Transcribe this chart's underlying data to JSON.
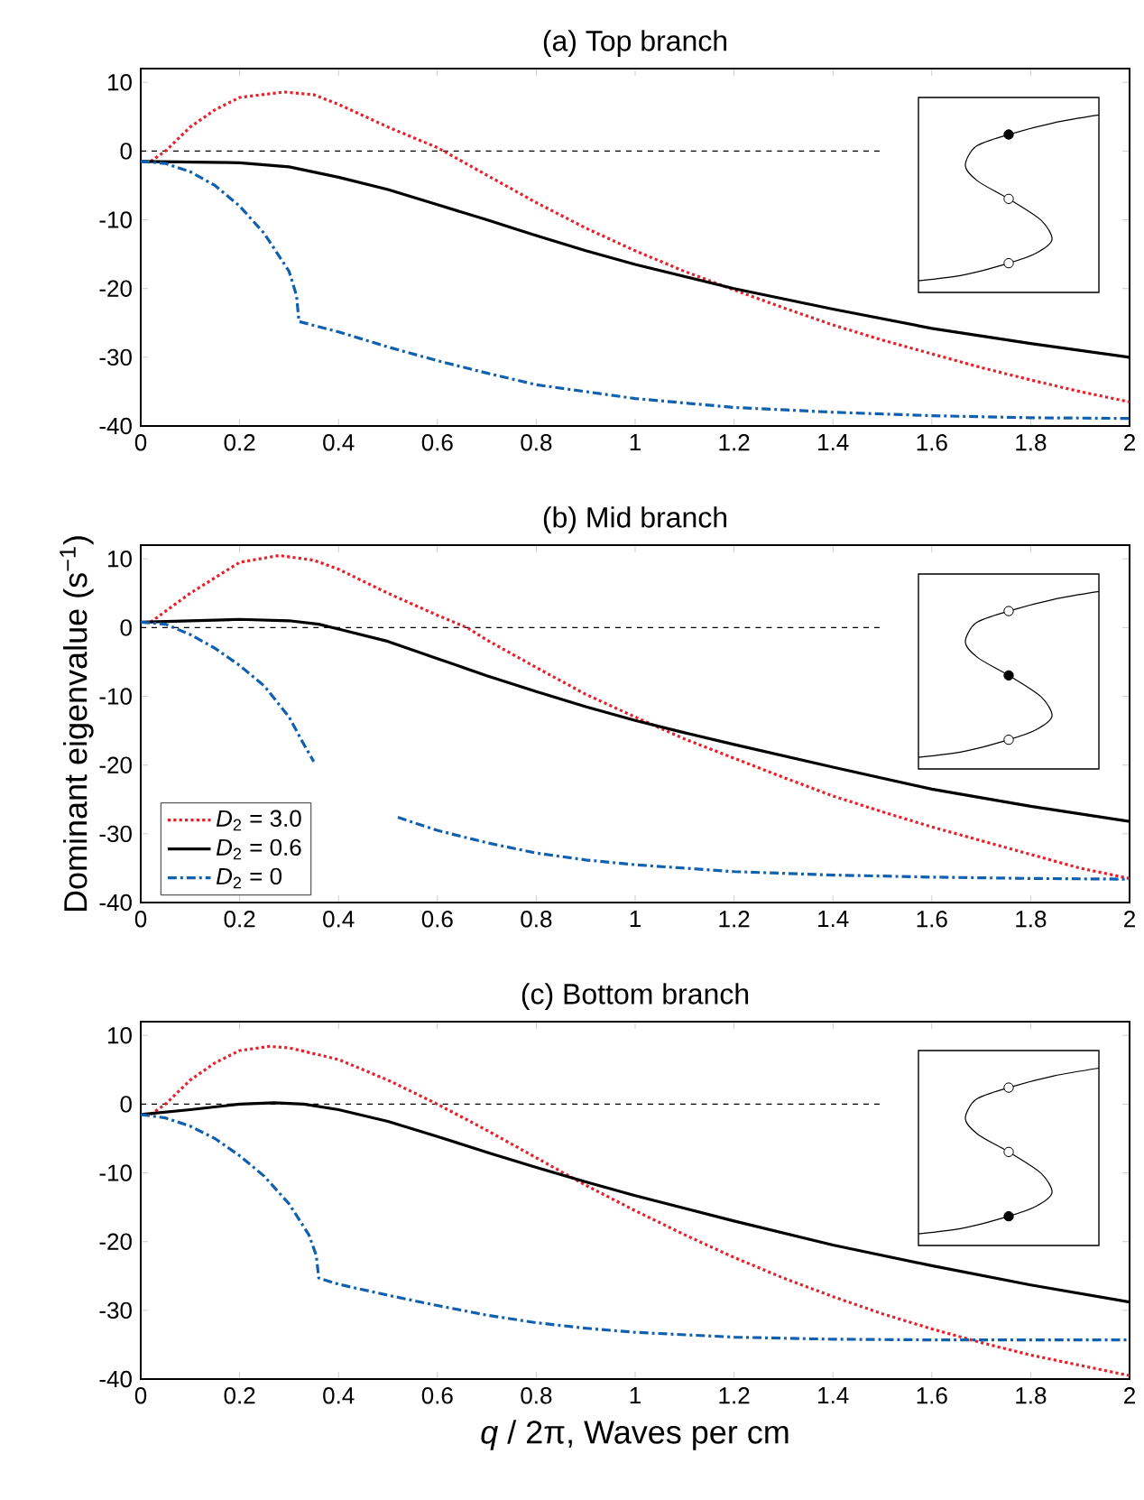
{
  "chart_data": [
    {
      "type": "line",
      "title": "(a) Top branch",
      "xlim": [
        0,
        2
      ],
      "ylim": [
        -40,
        12
      ],
      "xticks": [
        0,
        0.2,
        0.4,
        0.6,
        0.8,
        1,
        1.2,
        1.4,
        1.6,
        1.8,
        2
      ],
      "yticks": [
        -40,
        -30,
        -20,
        -10,
        0,
        10
      ],
      "series": [
        {
          "color": "#000000",
          "line_style": "dashed",
          "x": [
            0,
            1.5
          ],
          "values": [
            0,
            0
          ]
        },
        {
          "color": "#e8202a",
          "line_style": "dotted",
          "x": [
            0.02,
            0.05,
            0.1,
            0.15,
            0.2,
            0.29,
            0.35,
            0.4,
            0.5,
            0.6,
            0.7,
            0.8,
            0.9,
            1.0,
            1.1,
            1.2,
            1.3,
            1.4,
            1.5,
            1.6,
            1.7,
            1.8,
            1.9,
            2.0
          ],
          "values": [
            -1.5,
            0,
            3.5,
            6,
            7.8,
            8.6,
            8.2,
            6.8,
            3.5,
            0.5,
            -3.5,
            -7.5,
            -11.2,
            -14.5,
            -17.5,
            -20.2,
            -22.8,
            -25.3,
            -27.5,
            -29.5,
            -31.5,
            -33.3,
            -35,
            -36.5
          ]
        },
        {
          "color": "#000000",
          "line_style": "solid",
          "x": [
            0,
            0.2,
            0.3,
            0.4,
            0.5,
            0.6,
            0.7,
            0.8,
            0.9,
            1.0,
            1.2,
            1.4,
            1.6,
            1.8,
            2.0
          ],
          "values": [
            -1.5,
            -1.7,
            -2.3,
            -3.8,
            -5.6,
            -7.8,
            -10,
            -12.3,
            -14.5,
            -16.5,
            -20,
            -23,
            -25.8,
            -28,
            -30
          ]
        },
        {
          "color": "#1060b0",
          "line_style": "dashdot",
          "x": [
            0,
            0.05,
            0.1,
            0.15,
            0.2,
            0.25,
            0.3,
            0.315,
            0.32,
            0.4,
            0.5,
            0.6,
            0.7,
            0.8,
            0.9,
            1.0,
            1.2,
            1.4,
            1.6,
            1.8,
            2.0
          ],
          "values": [
            -1.5,
            -1.8,
            -3,
            -5,
            -8,
            -12,
            -17.5,
            -21,
            -24.8,
            -26.3,
            -28.5,
            -30.5,
            -32.3,
            -34,
            -35,
            -36,
            -37.3,
            -38,
            -38.5,
            -38.8,
            -38.9
          ]
        }
      ]
    },
    {
      "type": "line",
      "title": "(b) Mid branch",
      "ylabel": "Dominant eigenvalue (s$^{−1}$)",
      "legend": "bottom left",
      "xlim": [
        0,
        2
      ],
      "ylim": [
        -40,
        12
      ],
      "xticks": [
        0,
        0.2,
        0.4,
        0.6,
        0.8,
        1,
        1.2,
        1.4,
        1.6,
        1.8,
        2
      ],
      "yticks": [
        -40,
        -30,
        -20,
        -10,
        0,
        10
      ],
      "series": [
        {
          "color": "#000000",
          "line_style": "dashed",
          "x": [
            0,
            1.5
          ],
          "values": [
            0,
            0
          ]
        },
        {
          "name": "*D*$_{2}$ = 3.0",
          "color": "#e8202a",
          "line_style": "dotted",
          "x": [
            0.02,
            0.1,
            0.2,
            0.28,
            0.35,
            0.4,
            0.5,
            0.6,
            0.66,
            0.7,
            0.8,
            0.9,
            1.0,
            1.1,
            1.2,
            1.3,
            1.4,
            1.5,
            1.6,
            1.7,
            1.8,
            1.9,
            2.0
          ],
          "values": [
            0.8,
            5,
            9.5,
            10.5,
            9.8,
            8.5,
            5,
            1.8,
            0,
            -1.8,
            -5.8,
            -9.7,
            -13,
            -16.2,
            -19,
            -21.8,
            -24.5,
            -26.8,
            -29,
            -31,
            -33,
            -35,
            -36.5
          ]
        },
        {
          "name": "*D*$_{2}$ = 0.6",
          "color": "#000000",
          "line_style": "solid",
          "x": [
            0,
            0.2,
            0.3,
            0.36,
            0.4,
            0.5,
            0.6,
            0.7,
            0.8,
            0.9,
            1.0,
            1.1,
            1.2,
            1.4,
            1.6,
            1.8,
            2.0
          ],
          "values": [
            0.8,
            1.2,
            1,
            0.5,
            -0.2,
            -2,
            -4.5,
            -7,
            -9.3,
            -11.5,
            -13.5,
            -15.3,
            -17,
            -20.3,
            -23.5,
            -26,
            -28.2
          ]
        },
        {
          "name": "*D*$_{2}$ =  0",
          "color": "#1060b0",
          "line_style": "dashdot",
          "x": [
            0,
            0.05,
            0.1,
            0.15,
            0.2,
            0.25,
            0.3,
            0.33,
            0.35,
            0.4,
            0.52,
            0.6,
            0.7,
            0.8,
            0.9,
            1.0,
            1.2,
            1.4,
            1.6,
            1.8,
            2.0
          ],
          "values": [
            0.8,
            0.5,
            -1,
            -3,
            -5.5,
            -8.5,
            -13,
            -17,
            -19.5,
            null,
            -27.6,
            -29.5,
            -31.3,
            -32.8,
            -33.8,
            -34.5,
            -35.5,
            -36,
            -36.3,
            -36.5,
            -36.6
          ]
        }
      ]
    },
    {
      "type": "line",
      "title": "(c) Bottom branch",
      "xlabel": "*q* / 2π, Waves per cm",
      "xlim": [
        0,
        2
      ],
      "ylim": [
        -40,
        12
      ],
      "xticks": [
        0,
        0.2,
        0.4,
        0.6,
        0.8,
        1,
        1.2,
        1.4,
        1.6,
        1.8,
        2
      ],
      "yticks": [
        -40,
        -30,
        -20,
        -10,
        0,
        10
      ],
      "series": [
        {
          "color": "#000000",
          "line_style": "dashed",
          "x": [
            0,
            1.5
          ],
          "values": [
            0,
            0
          ]
        },
        {
          "color": "#e8202a",
          "line_style": "dotted",
          "x": [
            0.02,
            0.05,
            0.1,
            0.15,
            0.2,
            0.26,
            0.3,
            0.4,
            0.5,
            0.6,
            0.7,
            0.8,
            0.9,
            1.0,
            1.1,
            1.2,
            1.3,
            1.4,
            1.5,
            1.6,
            1.7,
            1.8,
            1.9,
            2.0
          ],
          "values": [
            -1.5,
            0,
            3.5,
            6,
            7.8,
            8.4,
            8.2,
            6.5,
            3.5,
            0,
            -3.8,
            -7.8,
            -11.8,
            -15.5,
            -19,
            -22.3,
            -25.3,
            -28,
            -30.5,
            -32.7,
            -34.7,
            -36.5,
            -38,
            -39.5
          ]
        },
        {
          "color": "#000000",
          "line_style": "solid",
          "x": [
            0,
            0.1,
            0.2,
            0.27,
            0.33,
            0.4,
            0.5,
            0.6,
            0.7,
            0.8,
            0.9,
            1.0,
            1.2,
            1.4,
            1.6,
            1.8,
            2.0
          ],
          "values": [
            -1.5,
            -0.8,
            0,
            0.2,
            0,
            -0.8,
            -2.5,
            -4.7,
            -7,
            -9.2,
            -11.3,
            -13.3,
            -17,
            -20.5,
            -23.5,
            -26.3,
            -28.8
          ]
        },
        {
          "color": "#1060b0",
          "line_style": "dashdot",
          "x": [
            0,
            0.05,
            0.1,
            0.15,
            0.2,
            0.25,
            0.3,
            0.34,
            0.355,
            0.36,
            0.4,
            0.5,
            0.6,
            0.7,
            0.8,
            0.9,
            1.0,
            1.2,
            1.4,
            1.6,
            1.8,
            2.0
          ],
          "values": [
            -1.5,
            -2,
            -3.2,
            -5,
            -7.5,
            -10.5,
            -14.5,
            -19,
            -22,
            -25.3,
            -26.2,
            -27.8,
            -29.3,
            -30.7,
            -31.8,
            -32.6,
            -33.2,
            -33.9,
            -34.2,
            -34.3,
            -34.3,
            -34.3
          ]
        }
      ]
    }
  ]
}
